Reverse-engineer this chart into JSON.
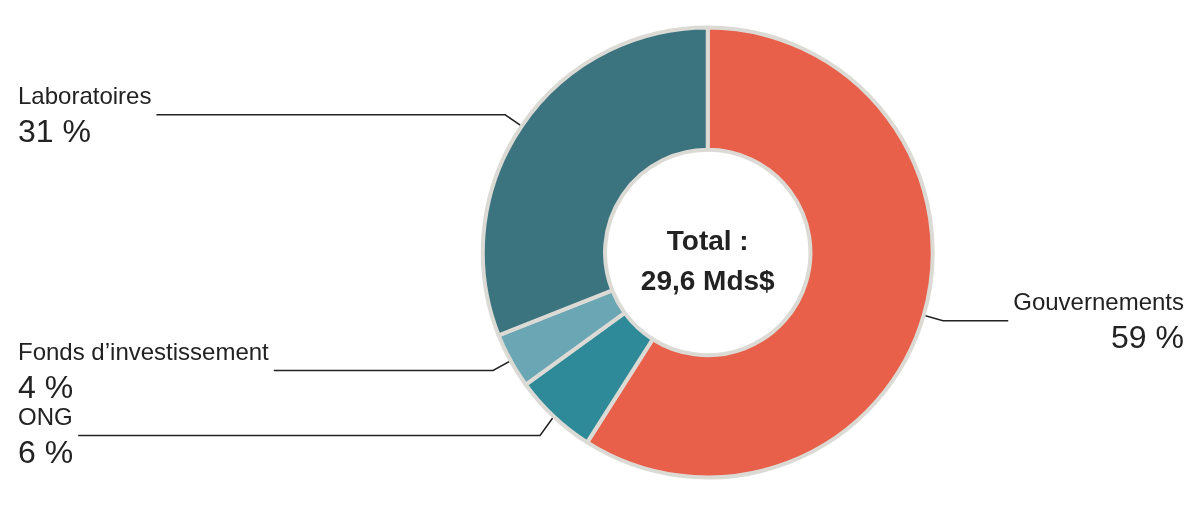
{
  "chart_data": {
    "type": "donut",
    "categories": [
      "Gouvernements",
      "ONG",
      "Fonds d’investissement",
      "Laboratoires"
    ],
    "values": [
      59,
      6,
      4,
      31
    ],
    "value_labels": [
      "59 %",
      "6 %",
      "4 %",
      "31 %"
    ],
    "colors": [
      "#e8604a",
      "#2e8a98",
      "#6aa6b4",
      "#3b737e"
    ],
    "annotations": [
      "Total :\n29,6 Mds$"
    ],
    "legend": false
  }
}
